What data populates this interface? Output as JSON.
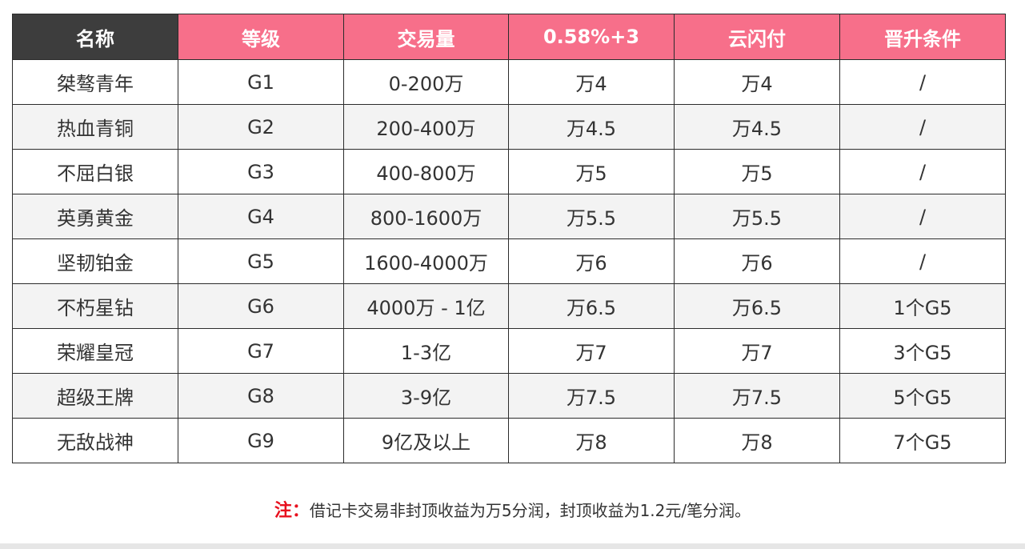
{
  "table": {
    "headers": [
      "名称",
      "等级",
      "交易量",
      "0.58%+3",
      "云闪付",
      "晋升条件"
    ],
    "rows": [
      [
        "桀骜青年",
        "G1",
        "0-200万",
        "万4",
        "万4",
        "/"
      ],
      [
        "热血青铜",
        "G2",
        "200-400万",
        "万4.5",
        "万4.5",
        "/"
      ],
      [
        "不屈白银",
        "G3",
        "400-800万",
        "万5",
        "万5",
        "/"
      ],
      [
        "英勇黄金",
        "G4",
        "800-1600万",
        "万5.5",
        "万5.5",
        "/"
      ],
      [
        "坚韧铂金",
        "G5",
        "1600-4000万",
        "万6",
        "万6",
        "/"
      ],
      [
        "不朽星钻",
        "G6",
        "4000万 - 1亿",
        "万6.5",
        "万6.5",
        "1个G5"
      ],
      [
        "荣耀皇冠",
        "G7",
        "1-3亿",
        "万7",
        "万7",
        "3个G5"
      ],
      [
        "超级王牌",
        "G8",
        "3-9亿",
        "万7.5",
        "万7.5",
        "5个G5"
      ],
      [
        "无敌战神",
        "G9",
        "9亿及以上",
        "万8",
        "万8",
        "7个G5"
      ]
    ]
  },
  "note": {
    "label": "注：",
    "text": "借记卡交易非封顶收益为万5分润，封顶收益为1.2元/笔分润。"
  },
  "colors": {
    "header_pink": "#f76f8a",
    "header_dark": "#3d3d3d",
    "row_alt": "#f3f3f3",
    "note_label": "#e8101e"
  }
}
